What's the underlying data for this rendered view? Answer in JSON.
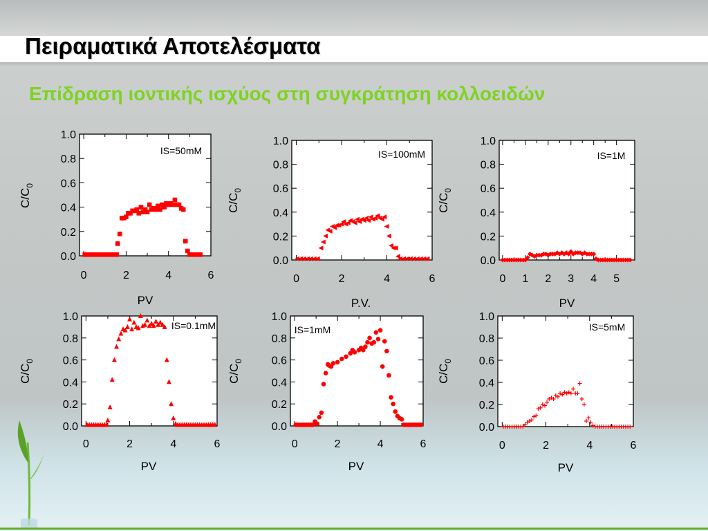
{
  "slide": {
    "title": "Πειραματικά Αποτελέσματα",
    "subtitle": "Επίδραση ιοντικής ισχύος στη συγκράτηση κολλοειδών"
  },
  "colors": {
    "title": "#000000",
    "subtitle": "#7ed321",
    "series": "#ff0000",
    "accent_line": "#5fae2a"
  },
  "chart_data": [
    {
      "id": "c1",
      "type": "scatter",
      "marker": "square",
      "title": "",
      "annotation": "IS=50mM",
      "xlabel": "PV",
      "ylabel": "C/C0",
      "xlim": [
        -0.2,
        6
      ],
      "ylim": [
        0,
        1
      ],
      "xticks": [
        "0",
        "2",
        "4",
        "6"
      ],
      "xtickvals": [
        0,
        2,
        4,
        6
      ],
      "yticks": [
        "0.0",
        "0.2",
        "0.4",
        "0.6",
        "0.8",
        "1.0"
      ],
      "x": [
        0.05,
        0.15,
        0.25,
        0.35,
        0.45,
        0.55,
        0.65,
        0.75,
        0.85,
        0.95,
        1.05,
        1.15,
        1.25,
        1.35,
        1.45,
        1.55,
        1.6,
        1.7,
        1.8,
        1.9,
        2.0,
        2.1,
        2.2,
        2.3,
        2.4,
        2.5,
        2.6,
        2.7,
        2.8,
        2.9,
        3.0,
        3.1,
        3.2,
        3.3,
        3.4,
        3.5,
        3.6,
        3.7,
        3.8,
        3.9,
        4.0,
        4.1,
        4.2,
        4.3,
        4.4,
        4.5,
        4.6,
        4.7,
        4.8,
        4.9,
        5.0,
        5.1,
        5.2,
        5.3,
        5.4,
        5.5
      ],
      "y": [
        0.01,
        0.01,
        0.01,
        0.01,
        0.01,
        0.01,
        0.01,
        0.01,
        0.01,
        0.01,
        0.01,
        0.01,
        0.01,
        0.01,
        0.01,
        0.01,
        0.1,
        0.18,
        0.31,
        0.31,
        0.32,
        0.35,
        0.35,
        0.37,
        0.37,
        0.38,
        0.35,
        0.4,
        0.36,
        0.38,
        0.36,
        0.42,
        0.38,
        0.39,
        0.38,
        0.41,
        0.38,
        0.42,
        0.4,
        0.43,
        0.42,
        0.43,
        0.42,
        0.46,
        0.42,
        0.42,
        0.39,
        0.38,
        0.12,
        0.04,
        0.01,
        0.01,
        0.01,
        0.01,
        0.01,
        0.01
      ]
    },
    {
      "id": "c2",
      "type": "scatter",
      "marker": "triangle-left",
      "title": "",
      "annotation": "IS=100mM",
      "xlabel": "P.V.",
      "ylabel": "C/C0",
      "xlim": [
        -0.2,
        6
      ],
      "ylim": [
        0,
        1
      ],
      "xticks": [
        "0",
        "2",
        "4",
        "6"
      ],
      "xtickvals": [
        0,
        2,
        4,
        6
      ],
      "yticks": [
        "0.0",
        "0.2",
        "0.4",
        "0.6",
        "0.8",
        "1.0"
      ],
      "x": [
        0.05,
        0.2,
        0.35,
        0.5,
        0.65,
        0.8,
        0.95,
        1.1,
        1.2,
        1.3,
        1.4,
        1.5,
        1.6,
        1.7,
        1.8,
        1.9,
        2.0,
        2.1,
        2.2,
        2.3,
        2.4,
        2.5,
        2.6,
        2.7,
        2.8,
        2.9,
        3.0,
        3.1,
        3.2,
        3.3,
        3.4,
        3.5,
        3.6,
        3.7,
        3.8,
        3.9,
        4.0,
        4.1,
        4.2,
        4.3,
        4.4,
        4.5,
        4.6,
        4.75,
        4.9,
        5.05,
        5.2,
        5.35,
        5.5,
        5.65,
        5.8
      ],
      "y": [
        0.01,
        0.01,
        0.01,
        0.01,
        0.01,
        0.01,
        0.01,
        0.1,
        0.15,
        0.2,
        0.25,
        0.24,
        0.28,
        0.27,
        0.29,
        0.29,
        0.3,
        0.32,
        0.3,
        0.31,
        0.33,
        0.32,
        0.31,
        0.34,
        0.32,
        0.34,
        0.33,
        0.35,
        0.33,
        0.36,
        0.34,
        0.35,
        0.37,
        0.35,
        0.34,
        0.36,
        0.28,
        0.2,
        0.12,
        0.1,
        0.1,
        0.03,
        0.01,
        0.01,
        0.01,
        0.01,
        0.01,
        0.01,
        0.01,
        0.01,
        0.01
      ]
    },
    {
      "id": "c3",
      "type": "scatter",
      "marker": "diamond",
      "title": "",
      "annotation": "IS=1M",
      "xlabel": "PV",
      "ylabel": "C/C0",
      "xlim": [
        -0.15,
        5.8
      ],
      "ylim": [
        0,
        1
      ],
      "xticks": [
        "0",
        "1",
        "2",
        "3",
        "4",
        "5"
      ],
      "xtickvals": [
        0,
        1,
        2,
        3,
        4,
        5
      ],
      "yticks": [
        "0.0",
        "0.2",
        "0.4",
        "0.6",
        "0.8",
        "1.0"
      ],
      "x": [
        0.0,
        0.1,
        0.2,
        0.3,
        0.4,
        0.5,
        0.6,
        0.7,
        0.8,
        0.9,
        1.0,
        1.1,
        1.2,
        1.3,
        1.4,
        1.5,
        1.6,
        1.7,
        1.8,
        1.9,
        2.0,
        2.1,
        2.2,
        2.3,
        2.4,
        2.5,
        2.6,
        2.7,
        2.8,
        2.9,
        3.0,
        3.1,
        3.2,
        3.3,
        3.4,
        3.5,
        3.6,
        3.7,
        3.8,
        3.9,
        4.0,
        4.1,
        4.2,
        4.3,
        4.4,
        4.5,
        4.6,
        4.7,
        4.8,
        4.9,
        5.0,
        5.1,
        5.2,
        5.3,
        5.4,
        5.5,
        5.6
      ],
      "y": [
        0.0,
        0.0,
        0.0,
        0.0,
        0.0,
        0.0,
        0.0,
        0.0,
        0.0,
        0.0,
        0.0,
        0.02,
        0.05,
        0.04,
        0.03,
        0.04,
        0.04,
        0.04,
        0.05,
        0.05,
        0.04,
        0.05,
        0.05,
        0.05,
        0.06,
        0.05,
        0.06,
        0.05,
        0.06,
        0.05,
        0.07,
        0.05,
        0.06,
        0.06,
        0.06,
        0.05,
        0.06,
        0.05,
        0.05,
        0.05,
        0.05,
        0.01,
        0.0,
        0.0,
        0.0,
        0.0,
        0.0,
        0.0,
        0.0,
        0.0,
        0.0,
        0.0,
        0.0,
        0.0,
        0.0,
        0.0,
        0.0
      ]
    },
    {
      "id": "c4",
      "type": "scatter",
      "marker": "triangle-up",
      "title": "",
      "annotation": "IS=0.1mM",
      "xlabel": "PV",
      "ylabel": "C/C0",
      "xlim": [
        -0.2,
        6
      ],
      "ylim": [
        0,
        1
      ],
      "xticks": [
        "0",
        "2",
        "4",
        "6"
      ],
      "xtickvals": [
        0,
        2,
        4,
        6
      ],
      "yticks": [
        "0.0",
        "0.2",
        "0.4",
        "0.6",
        "0.8",
        "1.0"
      ],
      "x": [
        0.05,
        0.15,
        0.25,
        0.35,
        0.45,
        0.55,
        0.65,
        0.75,
        0.85,
        0.95,
        1.0,
        1.1,
        1.2,
        1.3,
        1.4,
        1.5,
        1.6,
        1.7,
        1.8,
        1.9,
        2.0,
        2.1,
        2.2,
        2.3,
        2.4,
        2.5,
        2.6,
        2.7,
        2.8,
        2.9,
        3.0,
        3.1,
        3.2,
        3.3,
        3.4,
        3.5,
        3.6,
        3.7,
        3.8,
        3.9,
        4.0,
        4.1,
        4.2,
        4.3,
        4.4,
        4.5,
        4.6,
        4.7,
        4.8,
        4.9,
        5.0,
        5.1,
        5.2,
        5.3,
        5.4,
        5.5,
        5.6,
        5.7,
        5.8,
        5.9
      ],
      "y": [
        0.01,
        0.01,
        0.01,
        0.01,
        0.01,
        0.01,
        0.01,
        0.01,
        0.01,
        0.01,
        0.05,
        0.17,
        0.42,
        0.6,
        0.72,
        0.79,
        0.84,
        0.88,
        0.87,
        0.9,
        0.97,
        0.88,
        0.94,
        0.9,
        0.89,
        1.0,
        0.91,
        0.92,
        0.96,
        0.91,
        0.93,
        0.91,
        0.95,
        0.92,
        0.94,
        0.92,
        0.9,
        0.6,
        0.4,
        0.2,
        0.07,
        0.02,
        0.01,
        0.01,
        0.01,
        0.01,
        0.01,
        0.01,
        0.01,
        0.01,
        0.01,
        0.01,
        0.01,
        0.01,
        0.01,
        0.01,
        0.01,
        0.01,
        0.01,
        0.01
      ]
    },
    {
      "id": "c5",
      "type": "scatter",
      "marker": "circle",
      "title": "",
      "annotation": "IS=1mM",
      "xlabel": "PV",
      "ylabel": "C/C0",
      "xlim": [
        -0.2,
        6
      ],
      "ylim": [
        0,
        1
      ],
      "xticks": [
        "0",
        "2",
        "4",
        "6"
      ],
      "xtickvals": [
        0,
        2,
        4,
        6
      ],
      "yticks": [
        "0.0",
        "0.2",
        "0.4",
        "0.6",
        "0.8",
        "1.0"
      ],
      "x": [
        0.05,
        0.15,
        0.25,
        0.35,
        0.45,
        0.55,
        0.65,
        0.75,
        0.85,
        0.95,
        1.05,
        1.15,
        1.25,
        1.35,
        1.45,
        1.55,
        1.6,
        1.7,
        1.8,
        2.0,
        2.2,
        2.4,
        2.6,
        2.7,
        2.8,
        3.0,
        3.1,
        3.2,
        3.3,
        3.4,
        3.5,
        3.6,
        3.7,
        3.8,
        3.9,
        4.0,
        4.1,
        4.2,
        4.3,
        4.4,
        4.5,
        4.6,
        4.7,
        4.8,
        4.9,
        5.0,
        5.1,
        5.2,
        5.3,
        5.4,
        5.5,
        5.6,
        5.7,
        5.8,
        5.9
      ],
      "y": [
        0.01,
        0.01,
        0.01,
        0.01,
        0.01,
        0.01,
        0.01,
        0.01,
        0.01,
        0.04,
        0.02,
        0.08,
        0.12,
        0.38,
        0.48,
        0.56,
        0.55,
        0.54,
        0.57,
        0.58,
        0.61,
        0.63,
        0.66,
        0.69,
        0.67,
        0.69,
        0.71,
        0.69,
        0.72,
        0.76,
        0.8,
        0.75,
        0.76,
        0.85,
        0.79,
        0.87,
        0.54,
        0.77,
        0.68,
        0.46,
        0.26,
        0.2,
        0.13,
        0.09,
        0.07,
        0.06,
        0.01,
        0.01,
        0.01,
        0.01,
        0.01,
        0.01,
        0.01,
        0.01,
        0.01
      ]
    },
    {
      "id": "c6",
      "type": "scatter",
      "marker": "plus",
      "title": "",
      "annotation": "IS=5mM",
      "xlabel": "PV",
      "ylabel": "C/C0",
      "xlim": [
        -0.2,
        6
      ],
      "ylim": [
        0,
        1
      ],
      "xticks": [
        "0",
        "2",
        "4",
        "6"
      ],
      "xtickvals": [
        0,
        2,
        4,
        6
      ],
      "yticks": [
        "0.0",
        "0.2",
        "0.4",
        "0.6",
        "0.8",
        "1.0"
      ],
      "x": [
        0.05,
        0.15,
        0.25,
        0.35,
        0.45,
        0.55,
        0.65,
        0.75,
        0.85,
        0.95,
        1.05,
        1.15,
        1.25,
        1.35,
        1.45,
        1.55,
        1.65,
        1.75,
        1.85,
        1.95,
        2.05,
        2.15,
        2.25,
        2.35,
        2.45,
        2.55,
        2.65,
        2.75,
        2.85,
        2.95,
        3.05,
        3.15,
        3.25,
        3.35,
        3.45,
        3.55,
        3.65,
        3.75,
        3.85,
        3.95,
        4.05,
        4.15,
        4.25,
        4.35,
        4.45,
        4.55,
        4.65,
        4.75,
        4.85,
        4.95,
        5.05,
        5.15,
        5.25,
        5.35,
        5.45,
        5.55,
        5.65,
        5.75,
        5.85
      ],
      "y": [
        0.0,
        0.0,
        0.0,
        0.0,
        0.0,
        0.0,
        0.0,
        0.0,
        0.0,
        0.0,
        0.02,
        0.04,
        0.05,
        0.06,
        0.09,
        0.1,
        0.16,
        0.17,
        0.2,
        0.19,
        0.22,
        0.25,
        0.26,
        0.25,
        0.28,
        0.27,
        0.3,
        0.29,
        0.31,
        0.3,
        0.31,
        0.3,
        0.34,
        0.3,
        0.3,
        0.39,
        0.25,
        0.2,
        0.05,
        0.08,
        0.04,
        0.01,
        0.0,
        0.0,
        0.0,
        0.0,
        0.0,
        0.0,
        0.0,
        0.0,
        0.0,
        0.0,
        0.0,
        0.0,
        0.0,
        0.0,
        0.0,
        0.0,
        0.0
      ]
    }
  ]
}
